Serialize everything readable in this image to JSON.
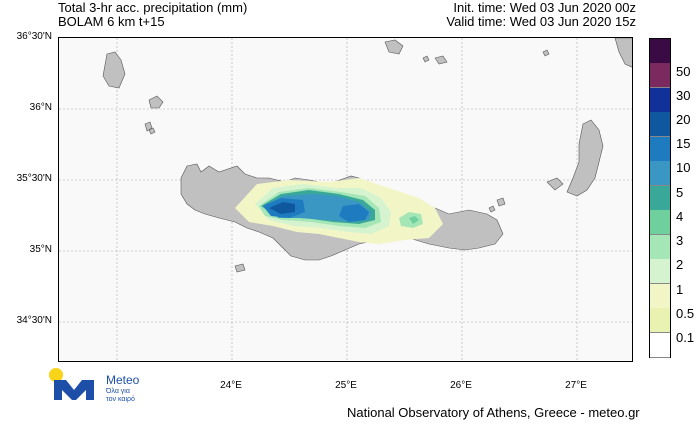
{
  "header": {
    "title_line1": "Total 3-hr acc. precipitation (mm)",
    "title_line2": "BOLAM 6 km t+15",
    "init_time": "Init. time: Wed 03 Jun 2020 00z",
    "valid_time": "Valid time: Wed 03 Jun 2020 15z"
  },
  "map": {
    "lat_labels": [
      "36°30'N",
      "36°N",
      "35°30'N",
      "35°N",
      "34°30'N"
    ],
    "lon_labels": [
      "24°E",
      "25°E",
      "26°E",
      "27°E"
    ],
    "land_color": "#c0c0c0",
    "sea_color": "#f9f9f9"
  },
  "colorbar": {
    "labels": [
      "50",
      "30",
      "20",
      "15",
      "10",
      "5",
      "4",
      "3",
      "2",
      "1",
      "0.5",
      "0.1"
    ],
    "colors": [
      "#3a0a45",
      "#7a2a5e",
      "#12309a",
      "#0f58a0",
      "#1e7bbf",
      "#3a97c4",
      "#3aa898",
      "#6fcf9d",
      "#a5e6b6",
      "#d6f3cf",
      "#f2f6c7",
      "#e9f2b0",
      "#ffffff"
    ]
  },
  "logo": {
    "name": "Meteo",
    "tagline_line1": "Όλα για",
    "tagline_line2": "τον καιρό",
    "colors": {
      "sun": "#f7d417",
      "brand": "#1d4fa8"
    }
  },
  "footer": {
    "credit": "National Observatory of Athens, Greece - meteo.gr"
  }
}
